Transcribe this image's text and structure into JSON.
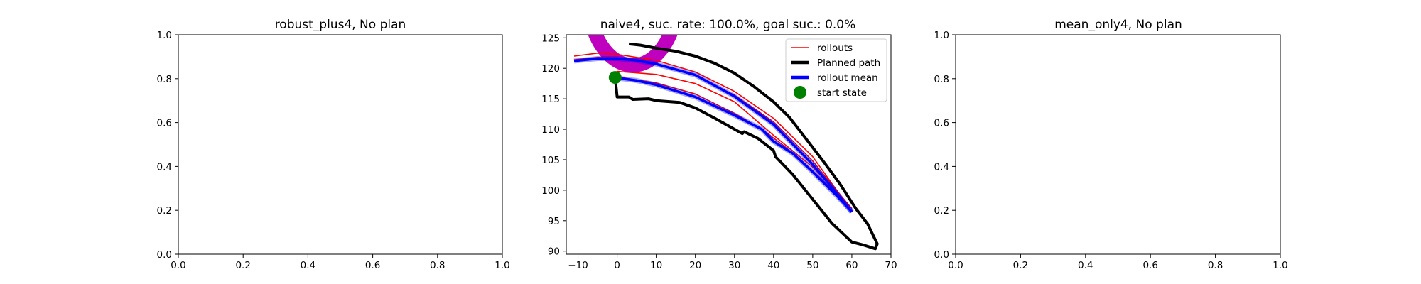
{
  "chart_data": [
    {
      "type": "line",
      "title": "robust_plus4, No plan",
      "xlim": [
        0.0,
        1.0
      ],
      "ylim": [
        0.0,
        1.0
      ],
      "xticks": [
        "0.0",
        "0.2",
        "0.4",
        "0.6",
        "0.8",
        "1.0"
      ],
      "yticks": [
        "0.0",
        "0.2",
        "0.4",
        "0.6",
        "0.8",
        "1.0"
      ],
      "series": []
    },
    {
      "type": "line",
      "title": "naive4, suc. rate: 100.0%, goal suc.: 0.0%",
      "xlim": [
        -13,
        70
      ],
      "ylim": [
        89.5,
        125.5
      ],
      "xticks": [
        "−10",
        "0",
        "10",
        "20",
        "30",
        "40",
        "50",
        "60",
        "70"
      ],
      "yticks": [
        "90",
        "95",
        "100",
        "105",
        "110",
        "115",
        "120",
        "125"
      ],
      "legend_position": "top-right",
      "legend": [
        "rollouts",
        "Planned path",
        "rollout mean",
        "start state"
      ],
      "colors": {
        "rollouts": "#ff0000",
        "planned": "#000000",
        "mean": "#0000ff",
        "start": "#008000",
        "obstacle": "#bf00bf"
      },
      "obstacle_arc": {
        "center": [
          4,
          132
        ],
        "radius": 11.5
      },
      "series": [
        {
          "name": "rollouts",
          "kind": "rollout",
          "points": [
            [
              -11,
              122
            ],
            [
              -5,
              122.5
            ],
            [
              0,
              122.3
            ],
            [
              10,
              121.3
            ],
            [
              20,
              119.4
            ],
            [
              30,
              116.2
            ],
            [
              40,
              111.8
            ],
            [
              50,
              105.5
            ],
            [
              55,
              101
            ],
            [
              59,
              97.5
            ]
          ]
        },
        {
          "name": "rollouts",
          "kind": "rollout",
          "points": [
            [
              -11,
              121.4
            ],
            [
              -5,
              121.8
            ],
            [
              0,
              121.7
            ],
            [
              10,
              120.7
            ],
            [
              20,
              118.8
            ],
            [
              30,
              115.6
            ],
            [
              40,
              111.2
            ],
            [
              50,
              104.8
            ],
            [
              56,
              100
            ],
            [
              60,
              97
            ]
          ]
        },
        {
          "name": "rollouts",
          "kind": "rollout",
          "points": [
            [
              0,
              119.5
            ],
            [
              10,
              119
            ],
            [
              20,
              117.5
            ],
            [
              30,
              114.5
            ],
            [
              40,
              109
            ],
            [
              50,
              103.8
            ],
            [
              55,
              100.5
            ],
            [
              60,
              96.5
            ]
          ]
        },
        {
          "name": "rollouts",
          "kind": "rollout",
          "points": [
            [
              0,
              118.6
            ],
            [
              10,
              117.6
            ],
            [
              20,
              115.8
            ],
            [
              30,
              112.6
            ],
            [
              37,
              110
            ],
            [
              42,
              107.6
            ],
            [
              50,
              103.2
            ],
            [
              56,
              99.5
            ],
            [
              60,
              97
            ]
          ]
        },
        {
          "name": "rollout mean",
          "kind": "mean",
          "points": [
            [
              -11,
              121.2
            ],
            [
              -5,
              121.6
            ],
            [
              0,
              121.6
            ],
            [
              5,
              121.3
            ],
            [
              10,
              120.7
            ],
            [
              20,
              118.9
            ],
            [
              30,
              115.4
            ],
            [
              40,
              110.8
            ],
            [
              50,
              104.2
            ],
            [
              55,
              100.4
            ],
            [
              60,
              96.4
            ]
          ]
        },
        {
          "name": "rollout mean",
          "kind": "mean",
          "points": [
            [
              0,
              118.4
            ],
            [
              5,
              118
            ],
            [
              10,
              117.3
            ],
            [
              20,
              115.3
            ],
            [
              30,
              112.3
            ],
            [
              37,
              110
            ],
            [
              40,
              108
            ],
            [
              45,
              106
            ],
            [
              50,
              103
            ],
            [
              56,
              99.2
            ],
            [
              60,
              96.5
            ]
          ]
        },
        {
          "name": "Planned path",
          "kind": "planned",
          "points": [
            [
              -0.5,
              118.5
            ],
            [
              0,
              115.3
            ],
            [
              3,
              115.3
            ],
            [
              4,
              114.9
            ],
            [
              8,
              115
            ],
            [
              10,
              114.7
            ],
            [
              16,
              114.4
            ],
            [
              20,
              113.5
            ],
            [
              25,
              111.8
            ],
            [
              30,
              110
            ],
            [
              32,
              109.3
            ],
            [
              32.5,
              109.6
            ],
            [
              36,
              108.5
            ],
            [
              40,
              106.5
            ],
            [
              40.5,
              105.5
            ],
            [
              45,
              102.5
            ],
            [
              50,
              98.5
            ],
            [
              55,
              94.5
            ],
            [
              60,
              91.5
            ],
            [
              63,
              91
            ],
            [
              66,
              90.4
            ],
            [
              66.5,
              91.2
            ],
            [
              64,
              94.5
            ],
            [
              61,
              97
            ],
            [
              57,
              101
            ],
            [
              53,
              104.5
            ],
            [
              50,
              107
            ],
            [
              47,
              109.5
            ],
            [
              44,
              112
            ],
            [
              40,
              114.5
            ],
            [
              35,
              117
            ],
            [
              30,
              119.2
            ],
            [
              25,
              120.8
            ],
            [
              20,
              122
            ],
            [
              15,
              122.8
            ],
            [
              10,
              123.3
            ],
            [
              6,
              123.8
            ],
            [
              3,
              124
            ]
          ]
        },
        {
          "name": "start state",
          "kind": "start",
          "points": [
            [
              -0.5,
              118.5
            ]
          ]
        }
      ]
    },
    {
      "type": "line",
      "title": "mean_only4, No plan",
      "xlim": [
        0.0,
        1.0
      ],
      "ylim": [
        0.0,
        1.0
      ],
      "xticks": [
        "0.0",
        "0.2",
        "0.4",
        "0.6",
        "0.8",
        "1.0"
      ],
      "yticks": [
        "0.0",
        "0.2",
        "0.4",
        "0.6",
        "0.8",
        "1.0"
      ],
      "series": []
    }
  ]
}
